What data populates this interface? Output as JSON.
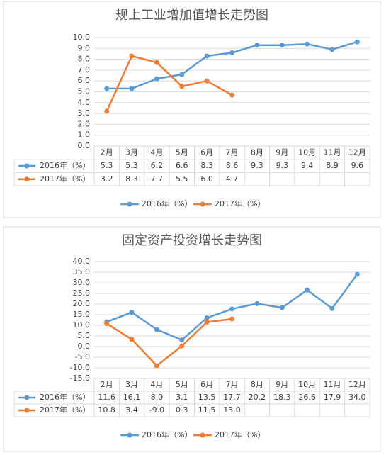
{
  "chart_data": [
    {
      "type": "line",
      "title": "规上工业增加值增长走势图",
      "categories": [
        "2月",
        "3月",
        "4月",
        "5月",
        "6月",
        "7月",
        "8月",
        "9月",
        "10月",
        "11月",
        "12月"
      ],
      "series": [
        {
          "name": "2016年（%）",
          "color": "#5b9bd5",
          "values": [
            5.3,
            5.3,
            6.2,
            6.6,
            8.3,
            8.6,
            9.3,
            9.3,
            9.4,
            8.9,
            9.6
          ],
          "value_labels": [
            "5.3",
            "5.3",
            "6.2",
            "6.6",
            "8.3",
            "8.6",
            "9.3",
            "9.3",
            "9.4",
            "8.9",
            "9.6"
          ]
        },
        {
          "name": "2017年（%）",
          "color": "#ed7d31",
          "values": [
            3.2,
            8.3,
            7.7,
            5.5,
            6.0,
            4.7,
            null,
            null,
            null,
            null,
            null
          ],
          "value_labels": [
            "3.2",
            "8.3",
            "7.7",
            "5.5",
            "6.0",
            "4.7",
            null,
            null,
            null,
            null,
            null
          ]
        }
      ],
      "ylim": [
        0,
        10
      ],
      "yticks": [
        {
          "value": 0,
          "label": "0.0"
        },
        {
          "value": 1,
          "label": "1.0"
        },
        {
          "value": 2,
          "label": "2.0"
        },
        {
          "value": 3,
          "label": "3.0"
        },
        {
          "value": 4,
          "label": "4.0"
        },
        {
          "value": 5,
          "label": "5.0"
        },
        {
          "value": 6,
          "label": "6.0"
        },
        {
          "value": 7,
          "label": "7.0"
        },
        {
          "value": 8,
          "label": "8.0"
        },
        {
          "value": 9,
          "label": "9.0"
        },
        {
          "value": 10,
          "label": "10.0"
        }
      ],
      "grid": true,
      "legend": "bottom"
    },
    {
      "type": "line",
      "title": "固定资产投资增长走势图",
      "categories": [
        "2月",
        "3月",
        "4月",
        "5月",
        "6月",
        "7月",
        "8月",
        "9月",
        "10月",
        "11月",
        "12月"
      ],
      "series": [
        {
          "name": "2016年（%）",
          "color": "#5b9bd5",
          "values": [
            11.6,
            16.1,
            8.0,
            3.1,
            13.5,
            17.7,
            20.2,
            18.3,
            26.6,
            17.9,
            34.0
          ],
          "value_labels": [
            "11.6",
            "16.1",
            "8.0",
            "3.1",
            "13.5",
            "17.7",
            "20.2",
            "18.3",
            "26.6",
            "17.9",
            "34.0"
          ]
        },
        {
          "name": "2017年（%）",
          "color": "#ed7d31",
          "values": [
            10.8,
            3.4,
            -9.0,
            0.3,
            11.5,
            13.0,
            null,
            null,
            null,
            null,
            null
          ],
          "value_labels": [
            "10.8",
            "3.4",
            "-9.0",
            "0.3",
            "11.5",
            "13.0",
            null,
            null,
            null,
            null,
            null
          ]
        }
      ],
      "ylim": [
        -15,
        40
      ],
      "yticks": [
        {
          "value": -15,
          "label": "-15.0"
        },
        {
          "value": -10,
          "label": "-10.0"
        },
        {
          "value": -5,
          "label": "-5.0"
        },
        {
          "value": 0,
          "label": "0.0"
        },
        {
          "value": 5,
          "label": "5.0"
        },
        {
          "value": 10,
          "label": "10.0"
        },
        {
          "value": 15,
          "label": "15.0"
        },
        {
          "value": 20,
          "label": "20.0"
        },
        {
          "value": 25,
          "label": "25.0"
        },
        {
          "value": 30,
          "label": "30.0"
        },
        {
          "value": 35,
          "label": "35.0"
        },
        {
          "value": 40,
          "label": "40.0"
        }
      ],
      "grid": true,
      "legend": "bottom"
    }
  ]
}
